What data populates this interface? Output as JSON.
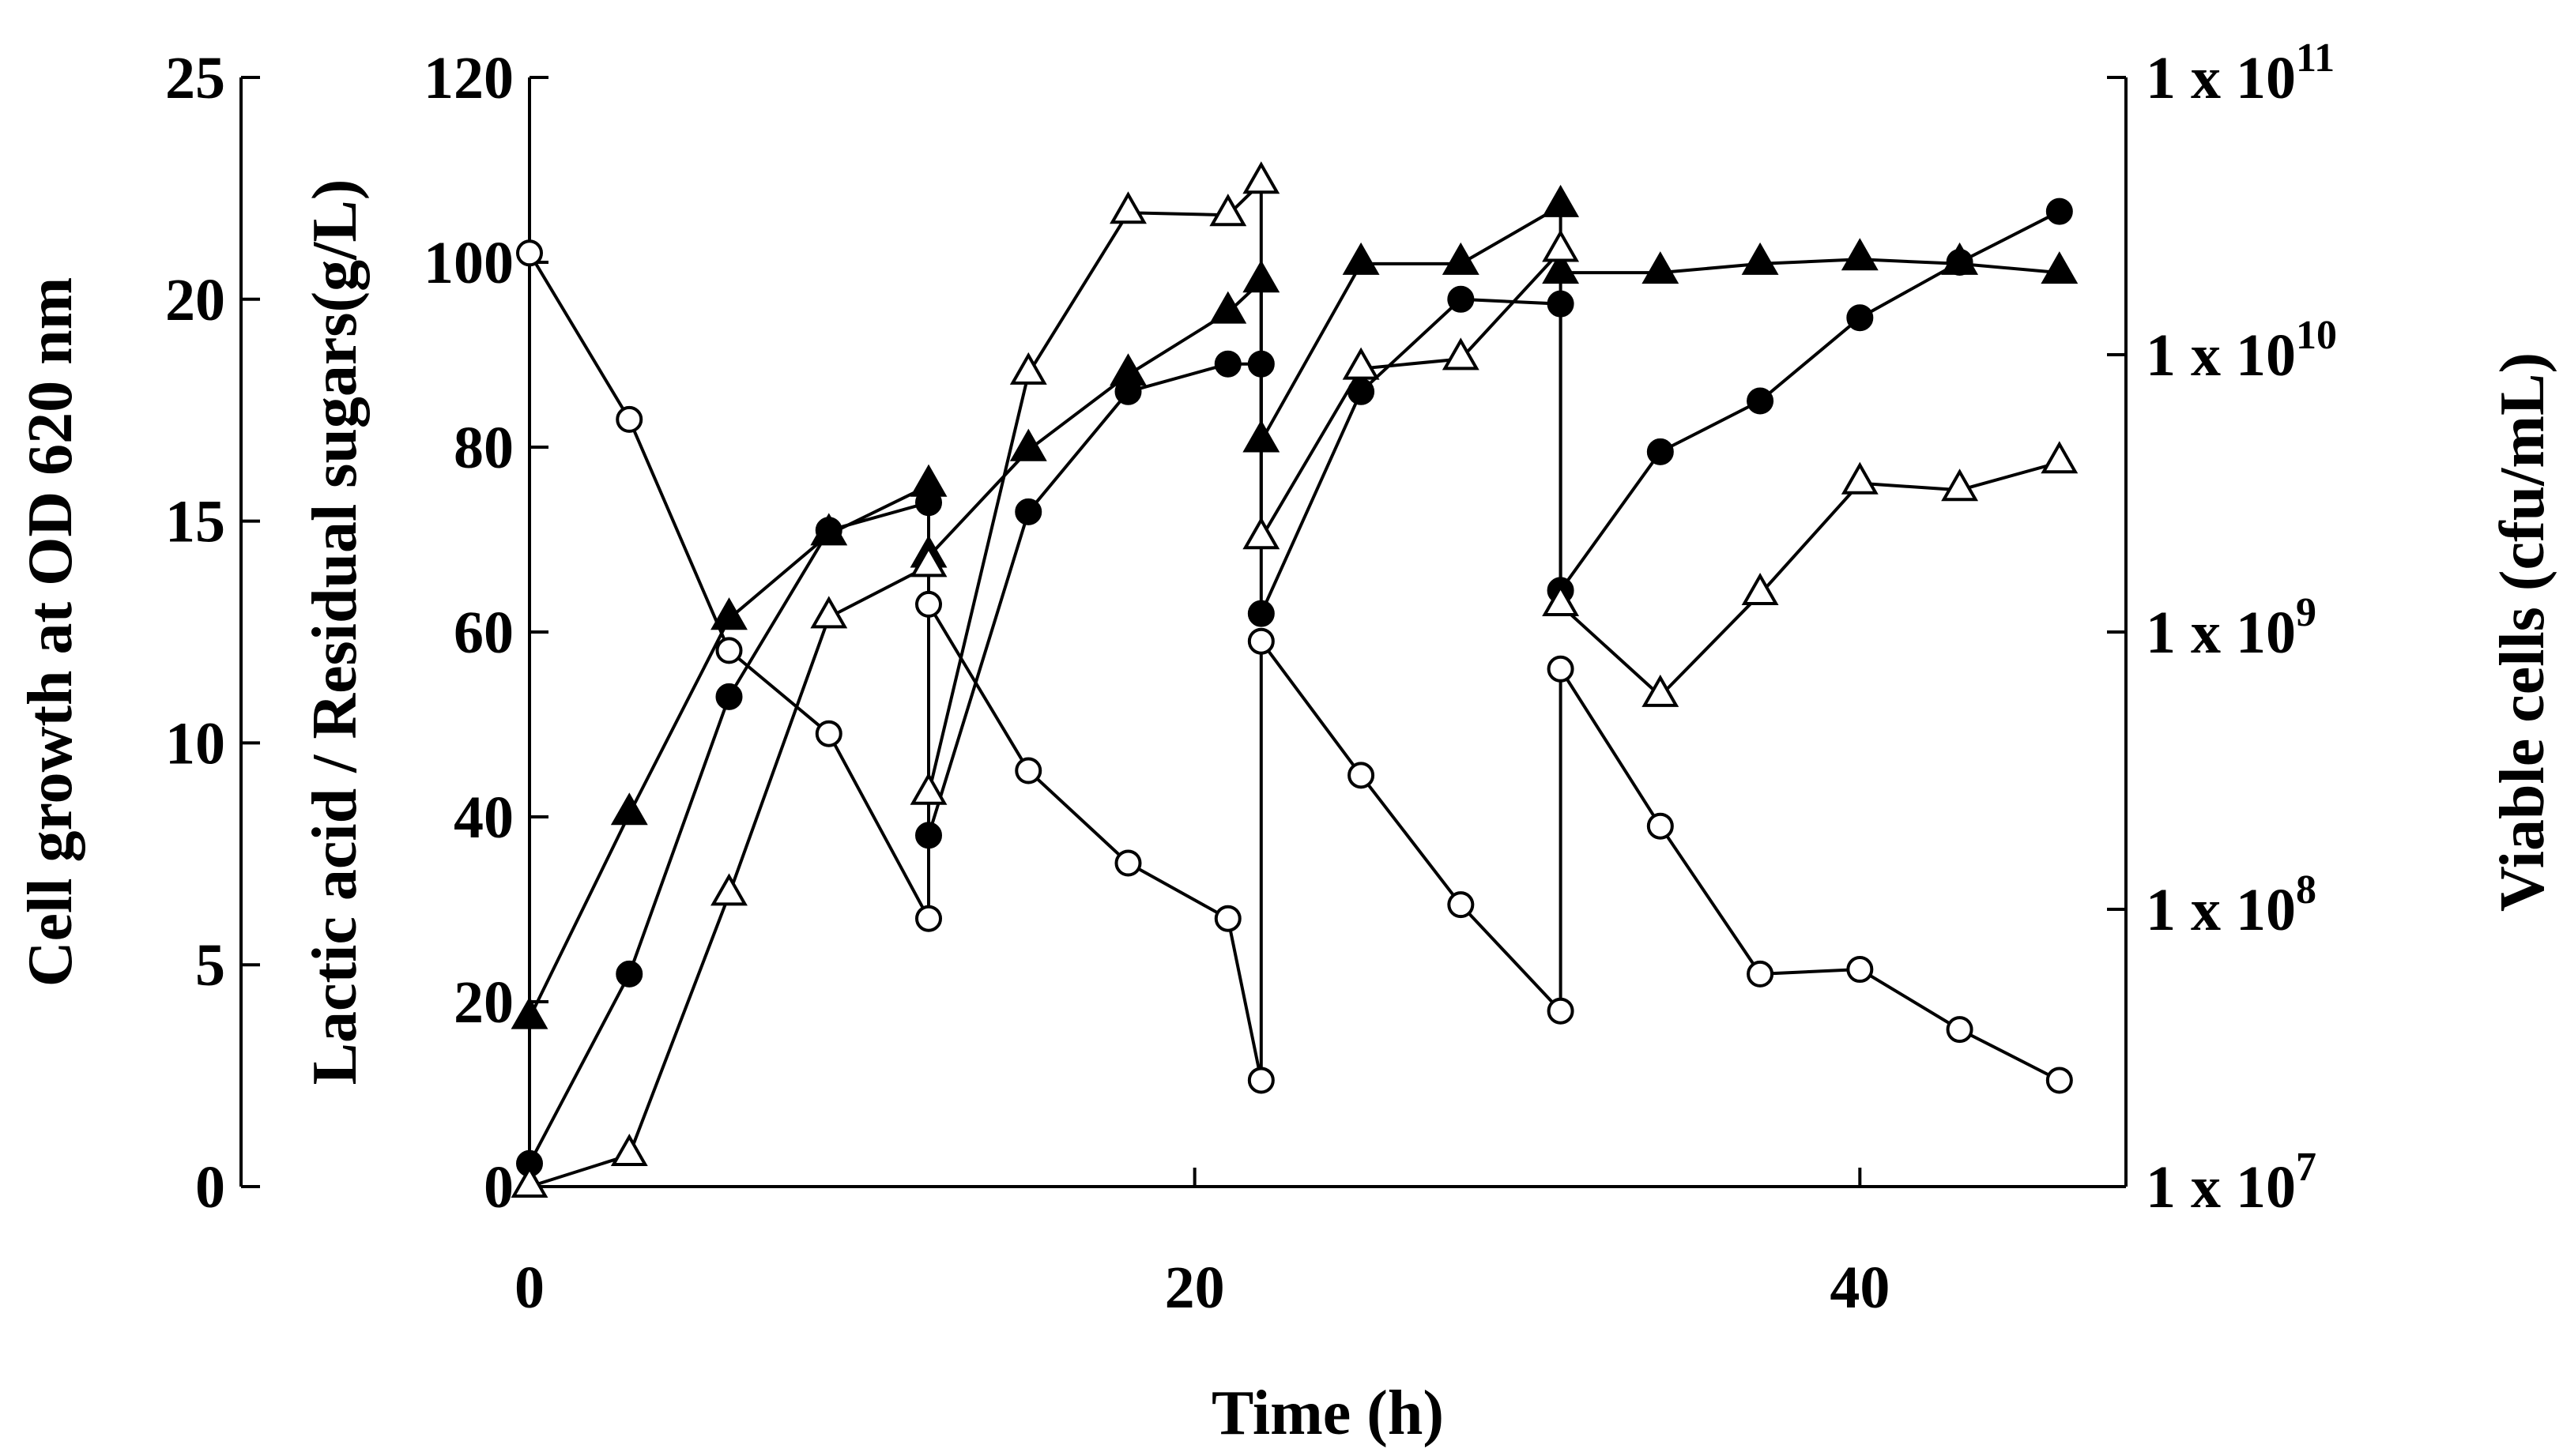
{
  "chart_data": {
    "type": "line",
    "title": "",
    "xlabel": "Time (h)",
    "ylabel_left_outer": "Cell growth at OD 620 nm",
    "ylabel_left_inner": "Lactic acid / Residual sugars(g/L)",
    "ylabel_right": "Viable cells (cfu/mL)",
    "xlim": [
      0,
      48
    ],
    "xticks": [
      "0",
      "20",
      "40"
    ],
    "ylim_od": [
      0,
      25
    ],
    "yticks_od": [
      "0",
      "5",
      "10",
      "15",
      "20",
      "25"
    ],
    "ylim_gl": [
      0,
      120
    ],
    "yticks_gl": [
      "0",
      "20",
      "40",
      "60",
      "80",
      "100",
      "120"
    ],
    "ylim_cfu_log10": [
      7,
      11
    ],
    "yticks_cfu": [
      {
        "base": "1 x 10",
        "exp": "7"
      },
      {
        "base": "1 x 10",
        "exp": "8"
      },
      {
        "base": "1 x 10",
        "exp": "9"
      },
      {
        "base": "1 x 10",
        "exp": "10"
      },
      {
        "base": "1 x 10",
        "exp": "11"
      }
    ],
    "series": [
      {
        "name": "Lactic acid",
        "marker": "filled-circle",
        "axis": "gl",
        "x": [
          0,
          3,
          6,
          9,
          12,
          12,
          15,
          18,
          21,
          22,
          22,
          25,
          28,
          31,
          31,
          34,
          37,
          40,
          43,
          46
        ],
        "y": [
          2.5,
          23,
          53,
          71,
          74,
          38,
          73,
          86,
          89,
          89,
          62,
          86,
          96,
          95.5,
          64.5,
          79.5,
          85,
          94,
          100,
          105.5
        ]
      },
      {
        "name": "Residual sugars",
        "marker": "open-circle",
        "axis": "gl",
        "x": [
          0,
          3,
          6,
          9,
          12,
          12,
          15,
          18,
          21,
          22,
          22,
          25,
          28,
          31,
          31,
          34,
          37,
          40,
          43,
          46
        ],
        "y": [
          101,
          83,
          58,
          49,
          29,
          63,
          45,
          35,
          29,
          11.5,
          59,
          44.5,
          30.5,
          19,
          56,
          39,
          23,
          23.5,
          17,
          11.5
        ]
      },
      {
        "name": "Cell growth (OD 620 nm)",
        "marker": "filled-triangle",
        "axis": "od",
        "x": [
          0,
          3,
          6,
          9,
          12,
          12,
          15,
          18,
          21,
          22,
          22,
          25,
          28,
          31,
          31,
          34,
          37,
          40,
          43,
          46
        ],
        "y": [
          3.8,
          8.4,
          12.8,
          14.7,
          15.8,
          14.2,
          16.6,
          18.3,
          19.7,
          20.4,
          16.8,
          20.8,
          20.8,
          22.1,
          20.6,
          20.6,
          20.8,
          20.9,
          20.8,
          20.6
        ]
      },
      {
        "name": "Viable cells (cfu/mL)",
        "marker": "open-triangle",
        "axis": "cfu",
        "x": [
          0,
          3,
          6,
          9,
          12,
          12,
          15,
          18,
          21,
          22,
          22,
          25,
          28,
          31,
          31,
          34,
          37,
          40,
          43,
          46
        ],
        "y": [
          10000000.0,
          13000000.0,
          113000000.0,
          1130000000.0,
          1730000000.0,
          261000000.0,
          8550000000.0,
          32500000000.0,
          31900000000.0,
          41700000000.0,
          2180000000.0,
          8910000000.0,
          9650000000.0,
          23700000000.0,
          1250000000.0,
          588000000.0,
          1370000000.0,
          3440000000.0,
          3250000000.0,
          4090000000.0
        ]
      }
    ]
  }
}
